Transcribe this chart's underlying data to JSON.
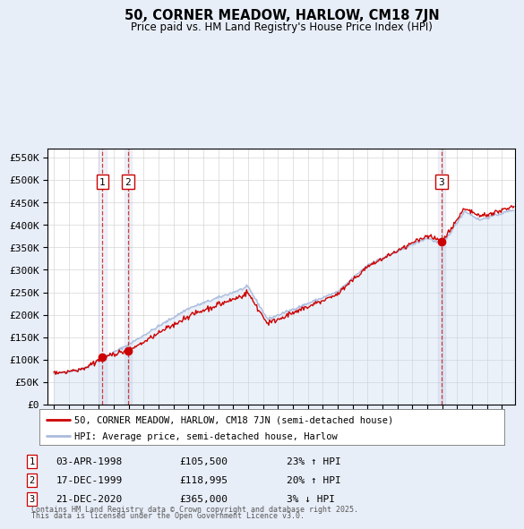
{
  "title": "50, CORNER MEADOW, HARLOW, CM18 7JN",
  "subtitle": "Price paid vs. HM Land Registry's House Price Index (HPI)",
  "ylim": [
    0,
    570000
  ],
  "yticks": [
    0,
    50000,
    100000,
    150000,
    200000,
    250000,
    300000,
    350000,
    400000,
    450000,
    500000,
    550000
  ],
  "ytick_labels": [
    "£0",
    "£50K",
    "£100K",
    "£150K",
    "£200K",
    "£250K",
    "£300K",
    "£350K",
    "£400K",
    "£450K",
    "£500K",
    "£550K"
  ],
  "legend_line1": "50, CORNER MEADOW, HARLOW, CM18 7JN (semi-detached house)",
  "legend_line2": "HPI: Average price, semi-detached house, Harlow",
  "footer_line1": "Contains HM Land Registry data © Crown copyright and database right 2025.",
  "footer_line2": "This data is licensed under the Open Government Licence v3.0.",
  "transactions": [
    {
      "num": 1,
      "date": "03-APR-1998",
      "price": "£105,500",
      "hpi_diff": "23% ↑ HPI",
      "x": 1998.25
    },
    {
      "num": 2,
      "date": "17-DEC-1999",
      "price": "£118,995",
      "hpi_diff": "20% ↑ HPI",
      "x": 1999.96
    },
    {
      "num": 3,
      "date": "21-DEC-2020",
      "price": "£365,000",
      "hpi_diff": "3% ↓ HPI",
      "x": 2020.96
    }
  ],
  "bg_color": "#e8eef8",
  "plot_bg": "#ffffff",
  "red_color": "#cc0000",
  "blue_color": "#aabbdd",
  "blue_fill": "#c8d8ee",
  "xlim_left": 1994.6,
  "xlim_right": 2025.9
}
